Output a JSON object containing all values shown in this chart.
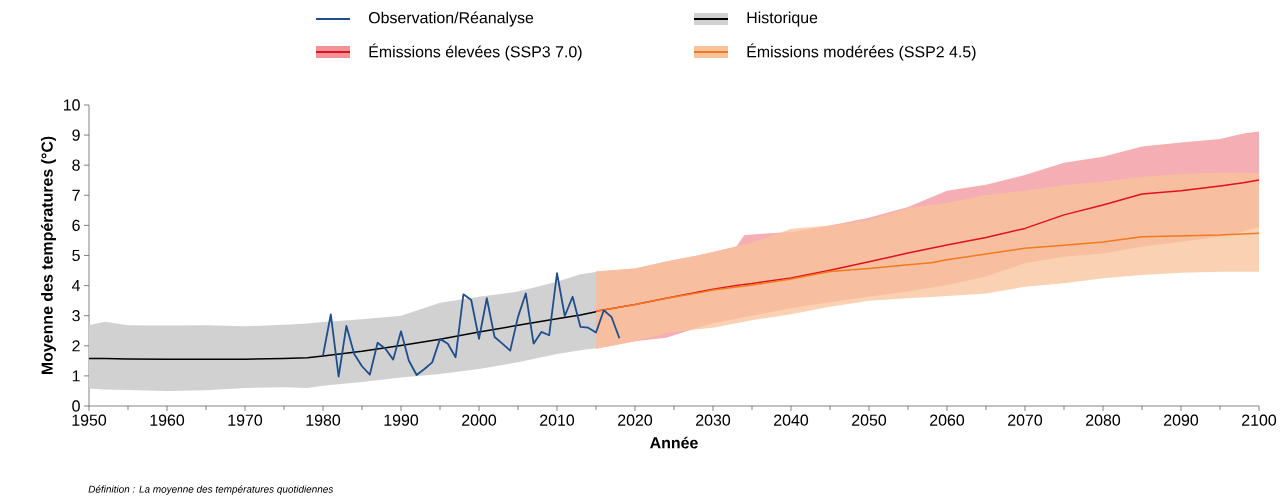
{
  "chart_data": {
    "type": "line",
    "xlabel": "Année",
    "ylabel": "Moyenne des températures (°C)",
    "xlim": [
      1950,
      2100
    ],
    "xticks": [
      1950,
      1960,
      1970,
      1980,
      1990,
      2000,
      2010,
      2020,
      2030,
      2040,
      2050,
      2060,
      2070,
      2080,
      2090,
      2100
    ],
    "ylim": [
      0,
      10
    ],
    "yticks": [
      0,
      1,
      2,
      3,
      4,
      5,
      6,
      7,
      8,
      9,
      10
    ],
    "legend": "top",
    "annotations": [
      "Définition : La moyenne des températures quotidiennes"
    ],
    "series": [
      {
        "name": "Observation/Réanalyse",
        "color": "#1f4e8c",
        "x": [
          1980,
          1981,
          1982,
          1983,
          1984,
          1985,
          1986,
          1987,
          1988,
          1989,
          1990,
          1991,
          1992,
          1993,
          1994,
          1995,
          1996,
          1997,
          1998,
          1999,
          2000,
          2001,
          2002,
          2003,
          2004,
          2005,
          2006,
          2007,
          2008,
          2009,
          2010,
          2011,
          2012,
          2013,
          2014,
          2015,
          2016,
          2017,
          2018
        ],
        "values": [
          1.68,
          3.04,
          0.98,
          2.66,
          1.73,
          1.32,
          1.04,
          2.1,
          1.9,
          1.54,
          2.48,
          1.51,
          1.03,
          1.23,
          1.45,
          2.23,
          2.07,
          1.62,
          3.71,
          3.52,
          2.23,
          3.58,
          2.29,
          2.07,
          1.84,
          2.96,
          3.74,
          2.07,
          2.46,
          2.35,
          4.41,
          2.99,
          3.63,
          2.63,
          2.6,
          2.44,
          3.18,
          2.95,
          2.25
        ]
      },
      {
        "name": "Historique",
        "color": "#000000",
        "x": [
          1950,
          1952,
          1955,
          1960,
          1965,
          1970,
          1975,
          1978,
          1980,
          1985,
          1990,
          1995,
          2000,
          2005,
          2010,
          2013,
          2015
        ],
        "values": [
          1.58,
          1.58,
          1.56,
          1.55,
          1.55,
          1.55,
          1.58,
          1.6,
          1.66,
          1.82,
          2.01,
          2.22,
          2.46,
          2.68,
          2.9,
          3.02,
          3.13
        ],
        "upper": [
          2.68,
          2.8,
          2.68,
          2.67,
          2.68,
          2.65,
          2.7,
          2.74,
          2.79,
          2.88,
          3.0,
          3.43,
          3.63,
          3.8,
          4.13,
          4.38,
          4.45
        ],
        "lower": [
          0.58,
          0.55,
          0.53,
          0.5,
          0.52,
          0.6,
          0.62,
          0.6,
          0.67,
          0.8,
          0.95,
          1.06,
          1.23,
          1.45,
          1.73,
          1.85,
          1.92
        ]
      },
      {
        "name": "Émissions élevées (SSP3 7.0)",
        "color": "#e0101c",
        "x": [
          2015,
          2020,
          2024,
          2028,
          2030,
          2033,
          2034,
          2035,
          2040,
          2045,
          2050,
          2055,
          2060,
          2065,
          2070,
          2075,
          2080,
          2085,
          2090,
          2095,
          2098,
          2100
        ],
        "values": [
          3.15,
          3.37,
          3.58,
          3.78,
          3.88,
          4.0,
          4.04,
          4.07,
          4.25,
          4.51,
          4.79,
          5.08,
          5.35,
          5.6,
          5.9,
          6.35,
          6.68,
          7.04,
          7.15,
          7.31,
          7.42,
          7.51
        ],
        "upper": [
          4.47,
          4.57,
          4.8,
          5.0,
          5.12,
          5.3,
          5.67,
          5.7,
          5.78,
          6.0,
          6.25,
          6.61,
          7.15,
          7.35,
          7.67,
          8.08,
          8.28,
          8.62,
          8.75,
          8.87,
          9.05,
          9.12
        ],
        "lower": [
          1.9,
          2.15,
          2.27,
          2.6,
          2.75,
          2.9,
          2.95,
          3.0,
          3.25,
          3.45,
          3.63,
          3.8,
          4.02,
          4.3,
          4.74,
          4.96,
          5.07,
          5.29,
          5.46,
          5.62,
          5.8,
          5.95
        ]
      },
      {
        "name": "Émissions modérées (SSP2 4.5)",
        "color": "#f07a1e",
        "x": [
          2015,
          2020,
          2024,
          2028,
          2030,
          2035,
          2040,
          2045,
          2050,
          2055,
          2058,
          2060,
          2065,
          2070,
          2075,
          2080,
          2085,
          2090,
          2095,
          2100
        ],
        "values": [
          3.15,
          3.37,
          3.58,
          3.75,
          3.85,
          4.02,
          4.22,
          4.47,
          4.57,
          4.69,
          4.76,
          4.86,
          5.05,
          5.24,
          5.34,
          5.45,
          5.62,
          5.65,
          5.68,
          5.74
        ],
        "upper": [
          4.47,
          4.57,
          4.8,
          5.0,
          5.12,
          5.42,
          5.89,
          6.0,
          6.18,
          6.58,
          6.68,
          6.74,
          7.01,
          7.15,
          7.34,
          7.45,
          7.62,
          7.71,
          7.75,
          7.74
        ],
        "lower": [
          1.9,
          2.15,
          2.42,
          2.55,
          2.6,
          2.85,
          3.05,
          3.3,
          3.5,
          3.58,
          3.62,
          3.65,
          3.74,
          3.96,
          4.08,
          4.24,
          4.35,
          4.43,
          4.46,
          4.46
        ]
      }
    ]
  }
}
